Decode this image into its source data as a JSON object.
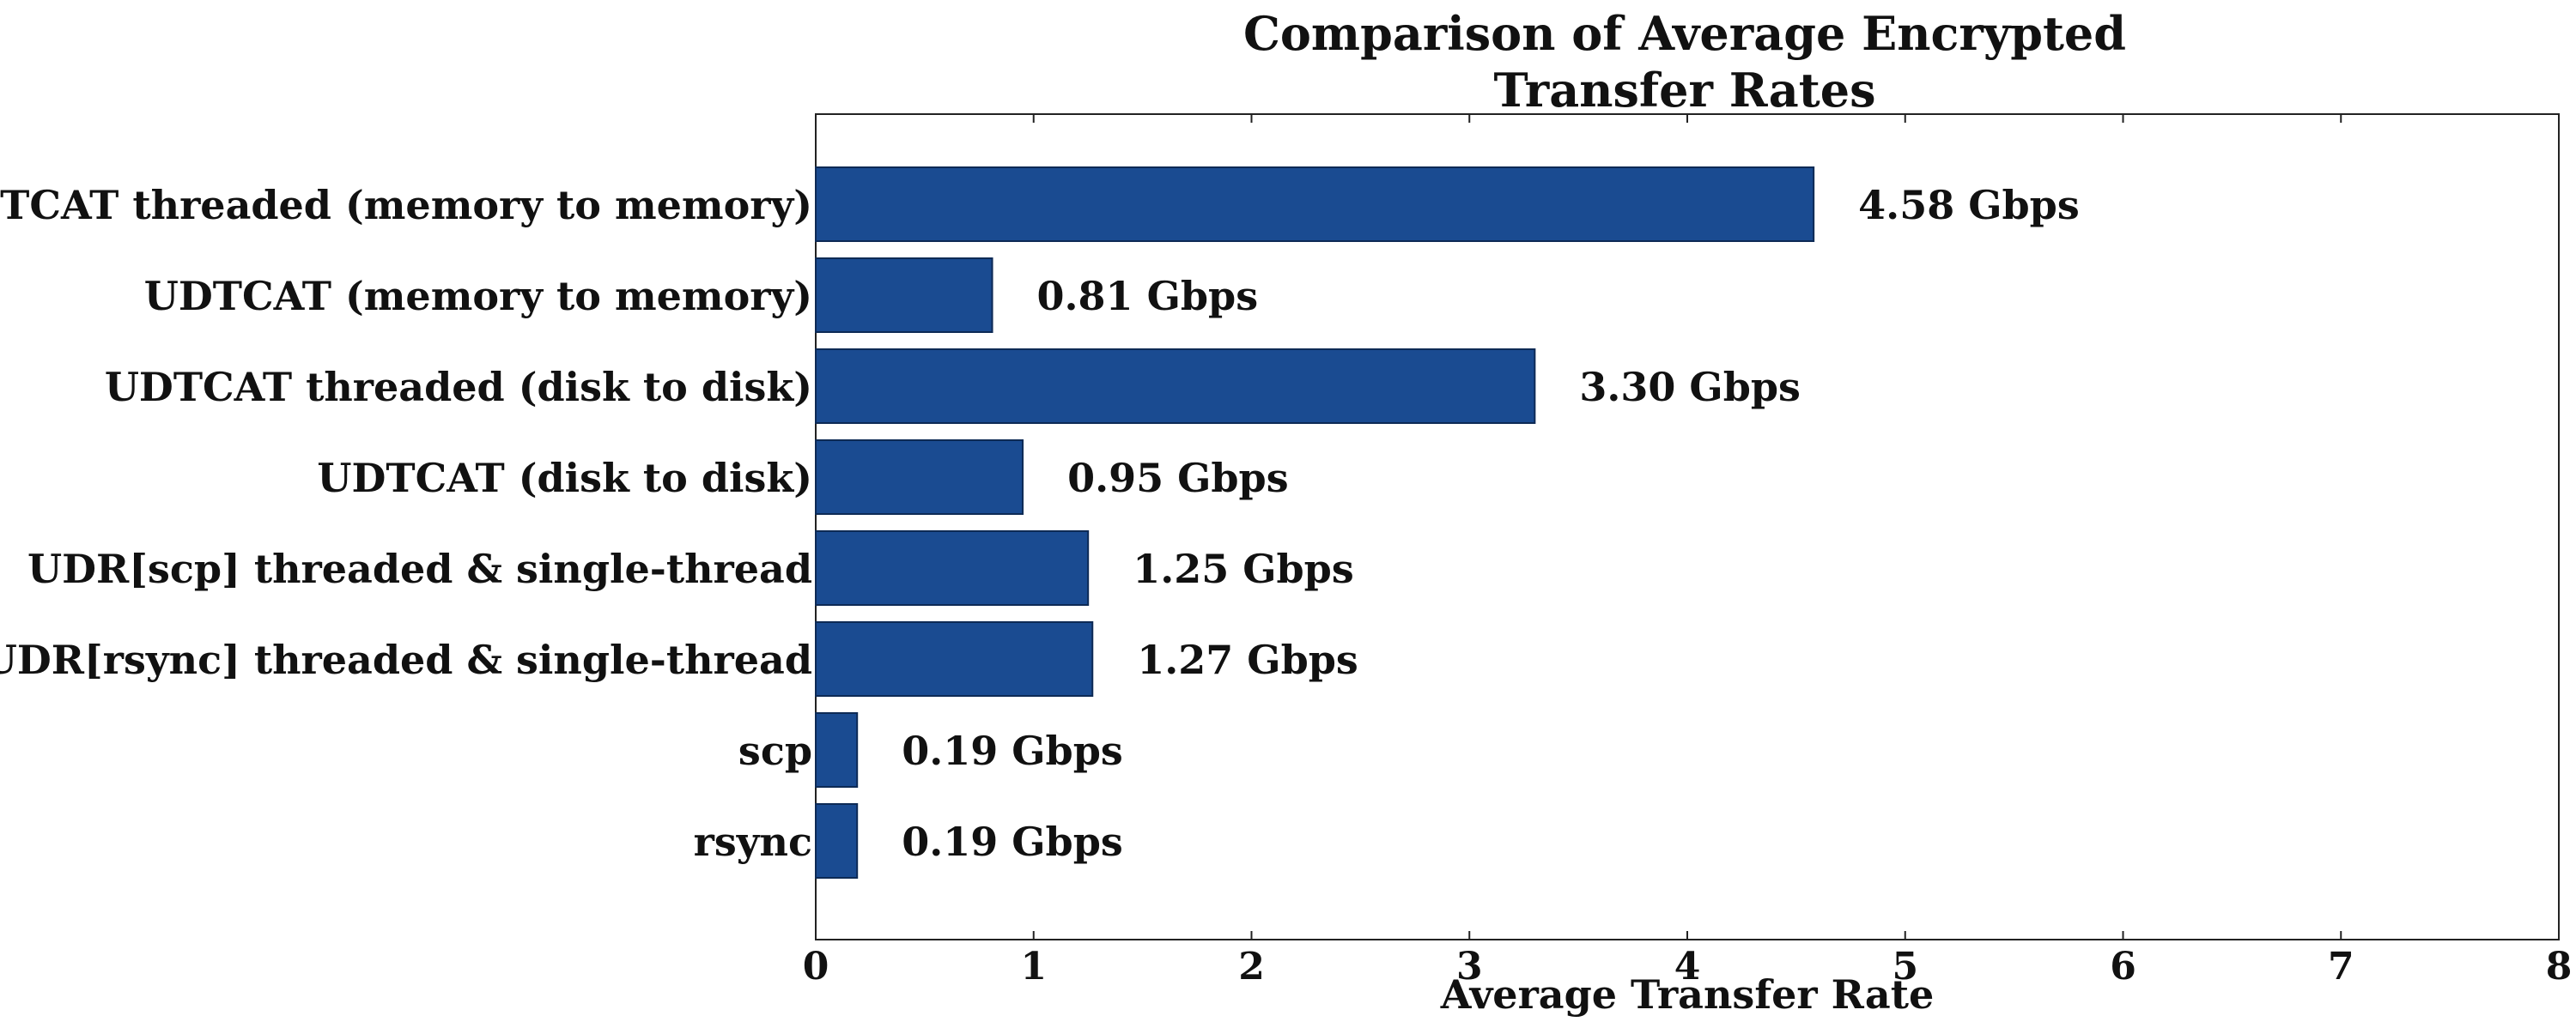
{
  "chart_data": {
    "type": "bar",
    "orientation": "horizontal",
    "title": "Comparison of Average Encrypted\nTransfer Rates",
    "xlabel": "Average Transfer Rate",
    "ylabel": "",
    "xlim": [
      0,
      8
    ],
    "xticks": [
      0,
      1,
      2,
      3,
      4,
      5,
      6,
      7,
      8
    ],
    "grid": false,
    "bar_color": "#1a4b91",
    "categories": [
      "UDTCAT threaded (memory to memory)",
      "UDTCAT (memory to memory)",
      "UDTCAT threaded (disk to disk)",
      "UDTCAT (disk to disk)",
      "UDR[scp] threaded & single-thread",
      "UDR[rsync] threaded & single-thread",
      "scp",
      "rsync"
    ],
    "values": [
      4.58,
      0.81,
      3.3,
      0.95,
      1.25,
      1.27,
      0.19,
      0.19
    ],
    "data_labels": [
      "4.58 Gbps",
      "0.81 Gbps",
      "3.30 Gbps",
      "0.95 Gbps",
      "1.25 Gbps",
      "1.27 Gbps",
      "0.19 Gbps",
      "0.19 Gbps"
    ]
  }
}
